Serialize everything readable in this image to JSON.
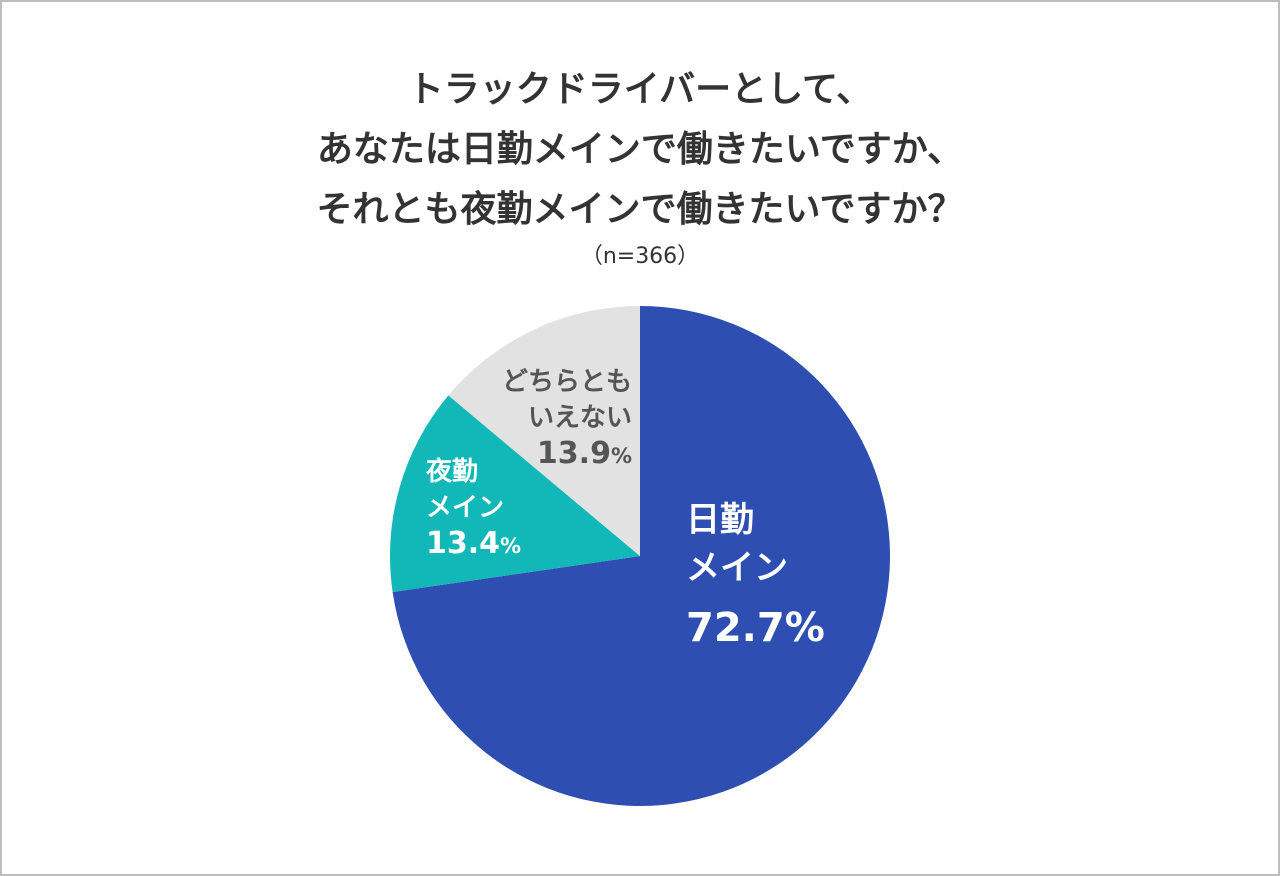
{
  "title_lines": [
    "トラックドライバーとして、",
    "あなたは日勤メインで働きたいですか、",
    "それとも夜勤メインで働きたいですか？"
  ],
  "subtitle": "（n=366）",
  "chart_data": {
    "type": "pie",
    "title": "トラックドライバーとして、あなたは日勤メインで働きたいですか、それとも夜勤メインで働きたいですか？",
    "subtitle": "（n=366）",
    "n": 366,
    "categories": [
      "日勤メイン",
      "夜勤メイン",
      "どちらともいえない"
    ],
    "values": [
      72.7,
      13.4,
      13.9
    ],
    "unit": "%",
    "colors": [
      "#2f4eb2",
      "#12b8b8",
      "#e2e2e2"
    ],
    "start_angle": "12 o'clock, clockwise",
    "legend": "none (labels inside slices)"
  },
  "labels": {
    "day": {
      "line1": "日勤",
      "line2": "メイン",
      "value": "72.7",
      "sign": "%"
    },
    "night": {
      "line1": "夜勤",
      "line2": "メイン",
      "value": "13.4",
      "sign": "%"
    },
    "neither": {
      "line1": "どちらとも",
      "line2": "いえない",
      "value": "13.9",
      "sign": "%"
    }
  },
  "colors": {
    "day": "#2f4eb2",
    "night": "#12b8b8",
    "neither": "#e2e2e2",
    "title_text": "#333333",
    "neither_text": "#555555",
    "border": "#bdbdbd"
  }
}
